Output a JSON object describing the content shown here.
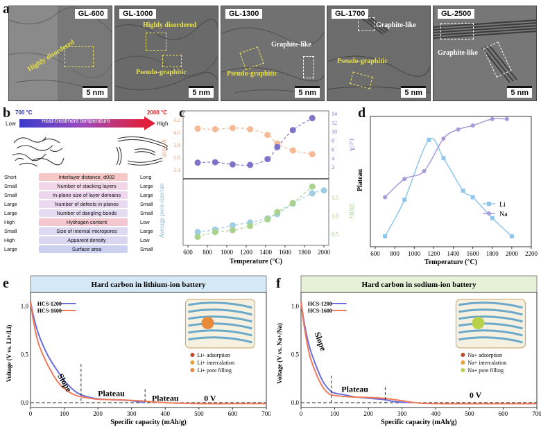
{
  "figure": {
    "panel_labels": [
      "a",
      "b",
      "c",
      "d",
      "e",
      "f"
    ]
  },
  "panel_a": {
    "images": [
      {
        "title": "GL-600",
        "scale": "5 nm",
        "annotations": [
          {
            "text": "Highly disordered",
            "color": "yellow"
          }
        ]
      },
      {
        "title": "GL-1000",
        "scale": "5 nm",
        "annotations": [
          {
            "text": "Highly disordered",
            "color": "yellow"
          },
          {
            "text": "Pseudo-graphitic",
            "color": "yellow"
          }
        ]
      },
      {
        "title": "GL-1300",
        "scale": "5 nm",
        "annotations": [
          {
            "text": "Graphite-like",
            "color": "white"
          },
          {
            "text": "Pseudo-graphitic",
            "color": "yellow"
          }
        ]
      },
      {
        "title": "GL-1700",
        "scale": "5 nm",
        "annotations": [
          {
            "text": "Graphite-like",
            "color": "white"
          },
          {
            "text": "Pseudo-graphitic",
            "color": "yellow"
          }
        ]
      },
      {
        "title": "GL-2500",
        "scale": "5 nm",
        "annotations": [
          {
            "text": "Graphite-like",
            "color": "white"
          }
        ]
      }
    ]
  },
  "panel_b": {
    "temp_low": "700 °C",
    "temp_high": "2000 °C",
    "arrow_left": "Low",
    "arrow_right": "High",
    "arrow_label": "Heat-treatment temperature",
    "rows": [
      {
        "low": "Short",
        "property": "Interlayer distance, d002",
        "high": "Long",
        "color": "#f6c7c7"
      },
      {
        "low": "Small",
        "property": "Number of stacking layers",
        "high": "Large",
        "color": "#f3d6ea"
      },
      {
        "low": "Small",
        "property": "In-plane size of layer domains",
        "high": "Large",
        "color": "#eed7ee"
      },
      {
        "low": "Large",
        "property": "Number of defects in planes",
        "high": "Small",
        "color": "#ead9f0"
      },
      {
        "low": "Large",
        "property": "Number of dangling bonds",
        "high": "Small",
        "color": "#e5dcf2"
      },
      {
        "low": "High",
        "property": "Hydrogen content",
        "high": "Low",
        "color": "#f4c6d0"
      },
      {
        "low": "Small",
        "property": "Size of internal micropores",
        "high": "Large",
        "color": "#ddd9f2"
      },
      {
        "low": "High",
        "property": "Apparent density",
        "high": "Low",
        "color": "#d9d6f1"
      },
      {
        "low": "Large",
        "property": "Surface area",
        "high": "Small",
        "color": "#ccd0f0"
      }
    ]
  },
  "chart_data": [
    {
      "id": "c",
      "type": "scatter",
      "xlabel": "Temperature (°C)",
      "xlim": [
        550,
        2050
      ],
      "xticks": [
        600,
        800,
        1000,
        1200,
        1400,
        1600,
        1800,
        2000
      ],
      "top": {
        "left_axis": {
          "label": "d002/Å",
          "lim": [
            3.3,
            4.3
          ],
          "ticks": [
            "3.4",
            "3.6",
            "3.8",
            "4.0",
            "4.2"
          ],
          "color": "#e8a27a"
        },
        "right_axis": {
          "label": "Lc/Å",
          "lim": [
            0,
            14
          ],
          "ticks": [
            "2",
            "4",
            "6",
            "8",
            "10",
            "12",
            "14"
          ],
          "color": "#7d74c8"
        },
        "series": [
          {
            "name": "d002",
            "axis": "left",
            "color": "#f5b995",
            "x": [
              700,
              880,
              1060,
              1240,
              1420,
              1520,
              1680,
              1880
            ],
            "y": [
              4.06,
              4.05,
              4.07,
              4.05,
              3.96,
              3.82,
              3.71,
              3.65
            ]
          },
          {
            "name": "Lc",
            "axis": "right",
            "color": "#7d74c8",
            "x": [
              700,
              880,
              1060,
              1240,
              1420,
              1520,
              1680,
              1880
            ],
            "y": [
              3.0,
              3.1,
              2.6,
              2.5,
              3.8,
              6.5,
              10.3,
              13.0
            ]
          }
        ]
      },
      "bottom": {
        "left_axis": {
          "label": "Average pore-size/nm",
          "color": "#7ab6d8"
        },
        "right_axis": {
          "label": "ID/IG",
          "ticks": [
            "0.5",
            "1.0",
            "1.5"
          ],
          "lim": [
            0.3,
            1.9
          ],
          "color": "#9cc77c"
        },
        "series": [
          {
            "name": "Average pore size",
            "axis": "left",
            "color": "#9fcde6",
            "x": [
              700,
              880,
              1060,
              1240,
              1420,
              1520,
              1680,
              1880,
              2000
            ],
            "y": [
              0.62,
              0.68,
              0.78,
              0.85,
              0.95,
              1.05,
              1.3,
              1.55,
              1.62
            ]
          },
          {
            "name": "ID/IG",
            "axis": "right",
            "color": "#a9d38c",
            "x": [
              700,
              880,
              1060,
              1240,
              1420,
              1520,
              1680,
              1880
            ],
            "y": [
              0.42,
              0.55,
              0.6,
              0.72,
              0.9,
              1.1,
              1.35,
              1.8
            ]
          }
        ]
      }
    },
    {
      "id": "d",
      "type": "line",
      "title": "",
      "xlabel": "Temperature (°C)",
      "ylabel": "Plateau",
      "xlim": [
        550,
        2200
      ],
      "xticks": [
        600,
        800,
        1000,
        1200,
        1400,
        1600,
        1800,
        2000,
        2200
      ],
      "ylim": [
        0,
        1
      ],
      "legend": "right",
      "series": [
        {
          "name": "Li",
          "color": "#8fc6ec",
          "x": [
            700,
            900,
            1150,
            1300,
            1500,
            1600,
            1800,
            2000
          ],
          "y": [
            0.08,
            0.36,
            0.82,
            0.68,
            0.43,
            0.38,
            0.22,
            0.08
          ]
        },
        {
          "name": "Na",
          "color": "#a69ad8",
          "x": [
            700,
            900,
            1100,
            1300,
            1450,
            1600,
            1800,
            1950
          ],
          "y": [
            0.38,
            0.52,
            0.58,
            0.83,
            0.9,
            0.93,
            0.98,
            0.98
          ]
        }
      ]
    },
    {
      "id": "e",
      "type": "line",
      "title": "Hard carbon in lithium-ion battery",
      "xlabel": "Specific capacity (mAh/g)",
      "ylabel": "Voltage (V vs. Li+/Li)",
      "xlim": [
        0,
        700
      ],
      "ylim": [
        -0.05,
        1.1
      ],
      "xticks": [
        0,
        100,
        200,
        300,
        400,
        500,
        600,
        700
      ],
      "yticks": [
        "0.0",
        "0.5",
        "1.0"
      ],
      "annotations": [
        "Slope",
        "Plateau",
        "Plateau",
        "0 V"
      ],
      "legend_lines": [
        "HCS-1200",
        "HCS-1600"
      ],
      "legend_dots": [
        "Li+ adsorption",
        "Li+ intercalation",
        "Li+ pore filling"
      ],
      "series": [
        {
          "name": "HCS-1200",
          "color": "#6a6fe0",
          "x": [
            0,
            10,
            25,
            50,
            80,
            110,
            140,
            170,
            200,
            250,
            300,
            340
          ],
          "y": [
            1.05,
            0.88,
            0.7,
            0.5,
            0.33,
            0.19,
            0.1,
            0.06,
            0.04,
            0.03,
            0.02,
            0.0
          ]
        },
        {
          "name": "HCS-1600",
          "color": "#f07a5a",
          "x": [
            0,
            10,
            25,
            50,
            80,
            110,
            140,
            170,
            200,
            260,
            320,
            400,
            500,
            600,
            700
          ],
          "y": [
            1.05,
            0.82,
            0.6,
            0.4,
            0.22,
            0.12,
            0.07,
            0.05,
            0.035,
            0.03,
            0.02,
            0.0,
            -0.01,
            -0.01,
            -0.01
          ]
        }
      ]
    },
    {
      "id": "f",
      "type": "line",
      "title": "Hard carbon in sodium-ion battery",
      "xlabel": "Specific capacity (mAh/g)",
      "ylabel": "Voltage (V vs. Na+/Na)",
      "xlim": [
        0,
        700
      ],
      "ylim": [
        -0.05,
        1.1
      ],
      "xticks": [
        0,
        100,
        200,
        300,
        400,
        500,
        600,
        700
      ],
      "yticks": [
        "0.0",
        "0.5",
        "1.0"
      ],
      "annotations": [
        "Slope",
        "Plateau",
        "0 V"
      ],
      "legend_lines": [
        "HCS-1200",
        "HCS-1600"
      ],
      "legend_dots": [
        "Na+ adsorption",
        "Na+ intercalation",
        "Na+ pore filling"
      ],
      "series": [
        {
          "name": "HCS-1200",
          "color": "#6a6fe0",
          "x": [
            0,
            10,
            25,
            45,
            65,
            85,
            100,
            130,
            160,
            190,
            220,
            250,
            280,
            330
          ],
          "y": [
            1.05,
            0.82,
            0.58,
            0.38,
            0.22,
            0.13,
            0.1,
            0.08,
            0.06,
            0.05,
            0.04,
            0.03,
            0.01,
            0.0
          ]
        },
        {
          "name": "HCS-1600",
          "color": "#f07a5a",
          "x": [
            0,
            10,
            25,
            45,
            65,
            85,
            110,
            150,
            190,
            230,
            260,
            300,
            340,
            400,
            700
          ],
          "y": [
            1.05,
            0.78,
            0.5,
            0.3,
            0.16,
            0.09,
            0.07,
            0.06,
            0.055,
            0.05,
            0.04,
            0.02,
            0.0,
            -0.01,
            -0.01
          ]
        }
      ]
    }
  ]
}
